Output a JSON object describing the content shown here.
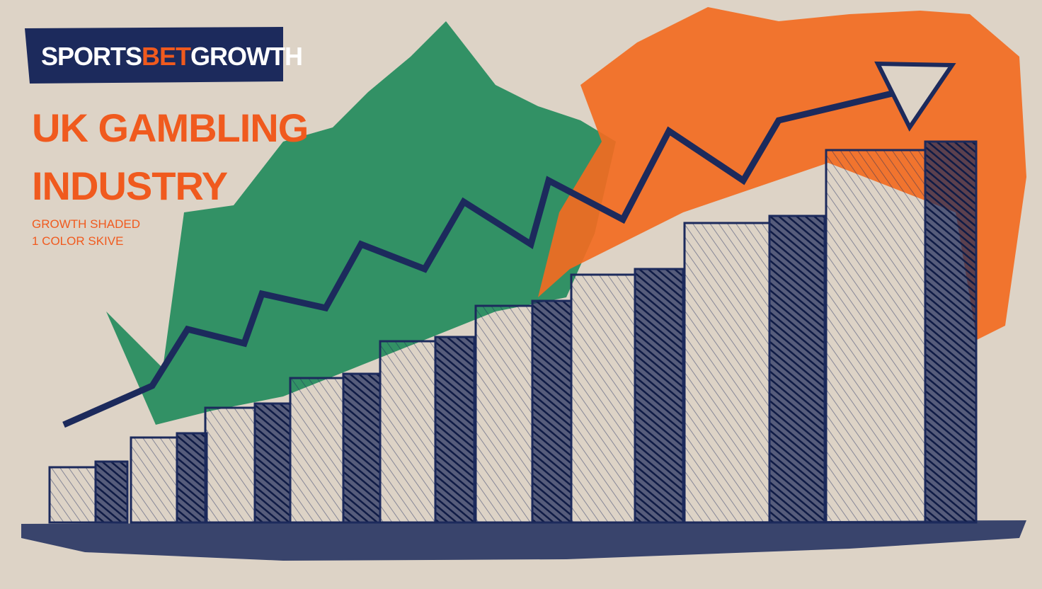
{
  "logo": {
    "part1": "SPORTS",
    "part2": "BET",
    "part3": "GROWTH"
  },
  "title": {
    "line1": "UK GAMBLING",
    "line2": "INDUSTRY"
  },
  "subtitle": {
    "line1": "GROWTH SHADED",
    "line2": "1 COLOR SKIVE"
  }
}
